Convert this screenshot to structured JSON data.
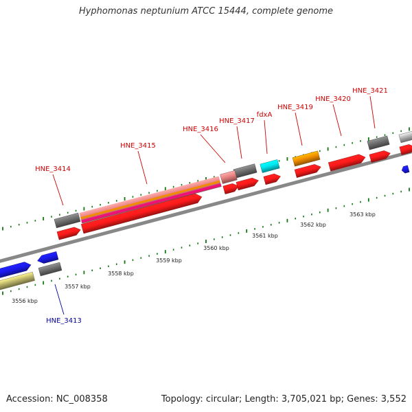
{
  "title": "Hyphomonas neptunium ATCC 15444, complete genome",
  "footer": {
    "accession": "Accession: NC_008358",
    "topology": "Topology: circular; Length: 3,705,021 bp; Genes: 3,552"
  },
  "colors": {
    "backbone": "#888888",
    "tick": "#117711",
    "gene_red": "#ff1a1a",
    "gene_gray": "#6e6e6e",
    "gene_blue": "#1a1aee",
    "gene_khaki": "#bdb76b",
    "gene_cyan": "#00e5ee",
    "gene_orange": "#f08c00",
    "gene_pink": "#e88080",
    "gene_magenta": "#ee1177",
    "label_red": "#cc0000",
    "label_blue": "#000099"
  },
  "kbp_labels": [
    "3556 kbp",
    "3557 kbp",
    "3558 kbp",
    "3559 kbp",
    "3560 kbp",
    "3561 kbp",
    "3562 kbp",
    "3563 kbp"
  ],
  "gene_labels": [
    {
      "text": "HNE_3413",
      "color": "blue"
    },
    {
      "text": "HNE_3414",
      "color": "red"
    },
    {
      "text": "HNE_3415",
      "color": "red"
    },
    {
      "text": "HNE_3416",
      "color": "red"
    },
    {
      "text": "HNE_3417",
      "color": "red"
    },
    {
      "text": "fdxA",
      "color": "red"
    },
    {
      "text": "HNE_3419",
      "color": "red"
    },
    {
      "text": "HNE_3420",
      "color": "red"
    },
    {
      "text": "HNE_3421",
      "color": "red"
    }
  ]
}
